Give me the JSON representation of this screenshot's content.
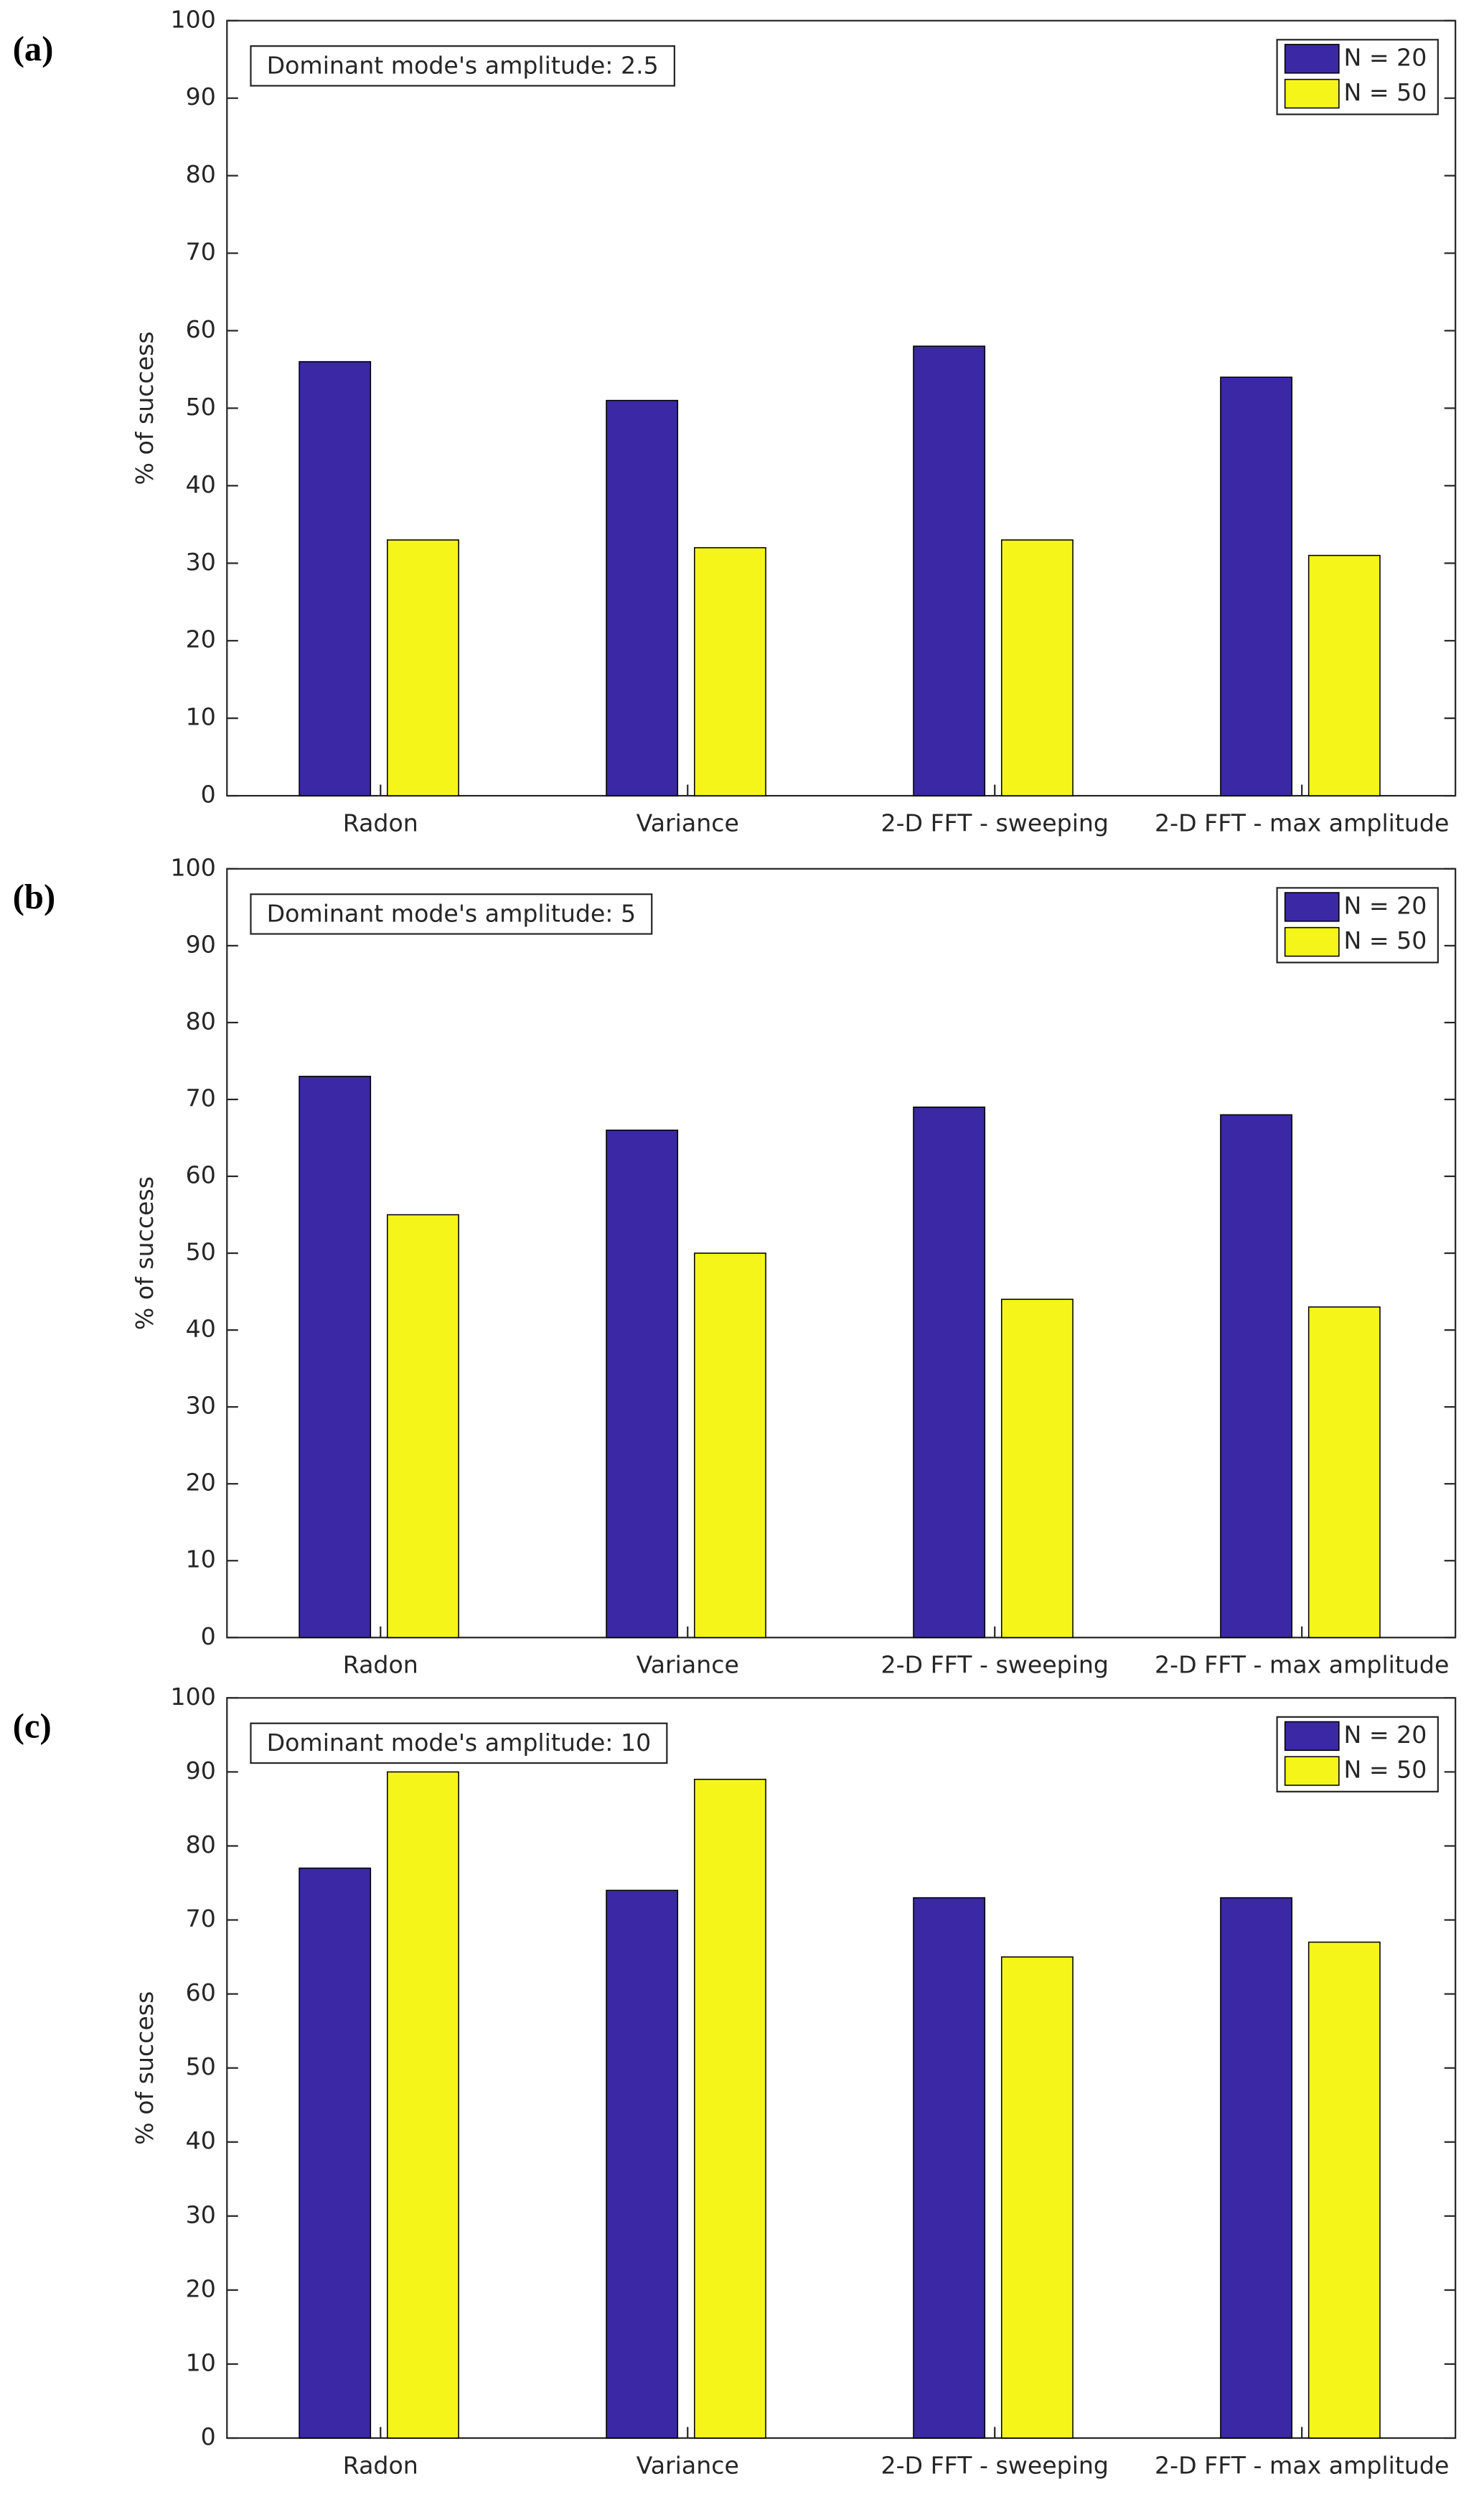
{
  "chart_data": [
    {
      "type": "bar",
      "panel_label": "(a)",
      "annotation": "Dominant mode's amplitude: 2.5",
      "y_label": "% of success",
      "categories": [
        "Radon",
        "Variance",
        "2-D FFT - sweeping",
        "2-D FFT - max amplitude"
      ],
      "series": [
        {
          "name": "N = 20",
          "color": "#3b28a5",
          "values": [
            56,
            51,
            58,
            54
          ]
        },
        {
          "name": "N = 50",
          "color": "#f5f51a",
          "values": [
            33,
            32,
            33,
            31
          ]
        }
      ],
      "ylim": [
        0,
        100
      ],
      "yticks": [
        0,
        10,
        20,
        30,
        40,
        50,
        60,
        70,
        80,
        90,
        100
      ],
      "legend": "upper right"
    },
    {
      "type": "bar",
      "panel_label": "(b)",
      "annotation": "Dominant mode's amplitude: 5",
      "y_label": "% of success",
      "categories": [
        "Radon",
        "Variance",
        "2-D FFT - sweeping",
        "2-D FFT - max amplitude"
      ],
      "series": [
        {
          "name": "N = 20",
          "color": "#3b28a5",
          "values": [
            73,
            66,
            69,
            68
          ]
        },
        {
          "name": "N = 50",
          "color": "#f5f51a",
          "values": [
            55,
            50,
            44,
            43
          ]
        }
      ],
      "ylim": [
        0,
        100
      ],
      "yticks": [
        0,
        10,
        20,
        30,
        40,
        50,
        60,
        70,
        80,
        90,
        100
      ],
      "legend": "upper right"
    },
    {
      "type": "bar",
      "panel_label": "(c)",
      "annotation": "Dominant mode's amplitude: 10",
      "y_label": "% of success",
      "categories": [
        "Radon",
        "Variance",
        "2-D FFT - sweeping",
        "2-D FFT - max amplitude"
      ],
      "series": [
        {
          "name": "N = 20",
          "color": "#3b28a5",
          "values": [
            77,
            74,
            73,
            73
          ]
        },
        {
          "name": "N = 50",
          "color": "#f5f51a",
          "values": [
            90,
            89,
            65,
            67
          ]
        }
      ],
      "ylim": [
        0,
        100
      ],
      "yticks": [
        0,
        10,
        20,
        30,
        40,
        50,
        60,
        70,
        80,
        90,
        100
      ],
      "legend": "upper right"
    }
  ]
}
